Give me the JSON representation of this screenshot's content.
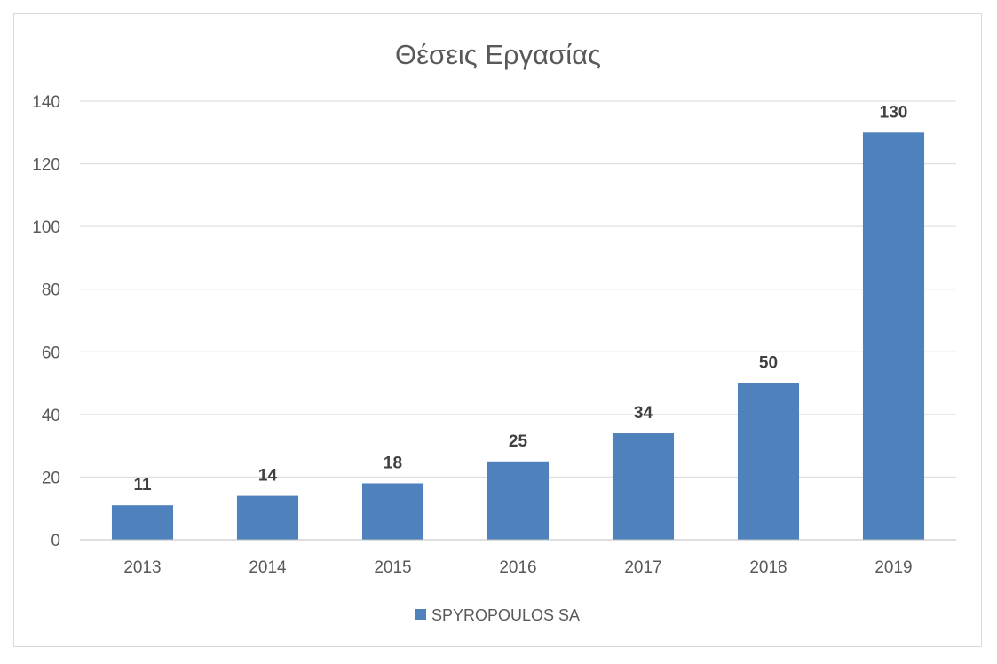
{
  "chart_data": {
    "type": "bar",
    "title": "Θέσεις Εργασίας",
    "categories": [
      "2013",
      "2014",
      "2015",
      "2016",
      "2017",
      "2018",
      "2019"
    ],
    "series": [
      {
        "name": "SPYROPOULOS SA",
        "values": [
          11,
          14,
          18,
          25,
          34,
          50,
          130
        ],
        "color": "#4f81bd"
      }
    ],
    "ylim": [
      0,
      140
    ],
    "yticks": [
      0,
      20,
      40,
      60,
      80,
      100,
      120,
      140
    ],
    "grid": true,
    "data_labels": true,
    "legend_position": "bottom"
  }
}
